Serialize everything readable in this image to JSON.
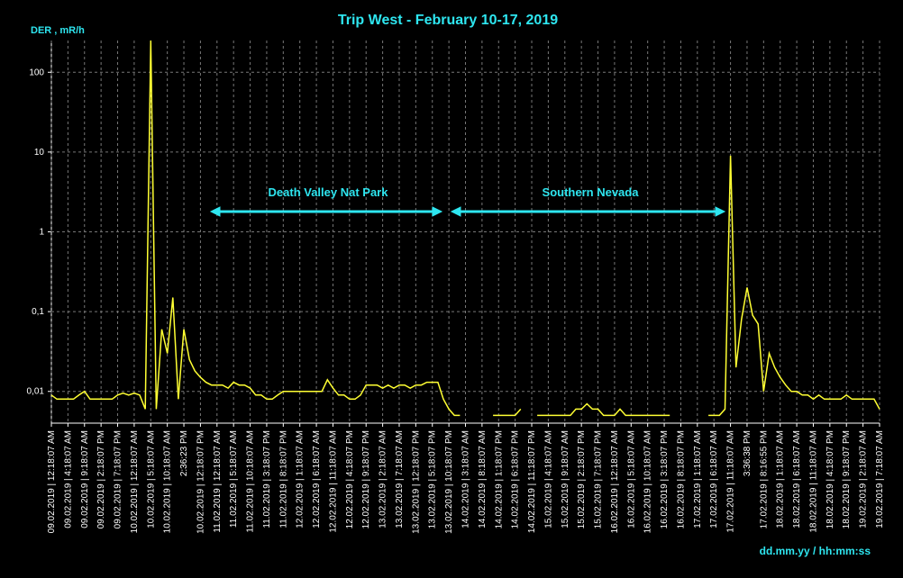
{
  "chart_data": {
    "type": "line",
    "title": "Trip West - February 10-17, 2019",
    "ylabel": "DER , mR/h",
    "xlabel": "dd.mm.yy / hh:mm:ss",
    "log_y": true,
    "grid": true,
    "ylim": [
      0.004,
      250
    ],
    "yticks": [
      {
        "value": 0.01,
        "label": "0,01"
      },
      {
        "value": 0.1,
        "label": "0,1"
      },
      1,
      10,
      100
    ],
    "annotations": [
      "Death Valley Nat Park",
      "Southern Nevada"
    ],
    "categories": [
      "09.02.2019 | 12:18:07 AM",
      null,
      null,
      "09.02.2019 | 4:18:07 AM",
      null,
      null,
      "09.02.2019 | 9:18:07 AM",
      null,
      null,
      "09.02.2019 | 2:18:07 PM",
      null,
      null,
      "09.02.2019 | 7:18:07 PM",
      null,
      null,
      "10.02.2019 | 12:18:07 AM",
      null,
      null,
      "10.02.2019 | 5:18:07 AM",
      null,
      null,
      "10.02.2019 | 10:18:07 AM",
      null,
      null,
      "2:36:23 PM",
      null,
      null,
      "10.02.2019 | 12:18:07 PM",
      null,
      null,
      "11.02.2019 | 12:18:07 AM",
      null,
      null,
      "11.02.2019 | 5:18:07 AM",
      null,
      null,
      "11.02.2019 | 10:18:07 AM",
      null,
      null,
      "11.02.2019 | 3:18:07 PM",
      null,
      null,
      "11.02.2019 | 8:18:07 PM",
      null,
      null,
      "12.02.2019 | 1:18:07 AM",
      null,
      null,
      "12.02.2019 | 6:18:07 AM",
      null,
      null,
      "12.02.2019 | 11:18:07 AM",
      null,
      null,
      "12.02.2019 | 4:18:07 PM",
      null,
      null,
      "12.02.2019 | 9:18:07 PM",
      null,
      null,
      "13.02.2019 | 2:18:07 AM",
      null,
      null,
      "13.02.2019 | 7:18:07 AM",
      null,
      null,
      "13.02.2019 | 12:18:07 PM",
      null,
      null,
      "13.02.2019 | 5:18:07 PM",
      null,
      null,
      "13.02.2019 | 10:18:07 PM",
      null,
      null,
      "14.02.2019 | 3:18:07 AM",
      null,
      null,
      "14.02.2019 | 8:18:07 AM",
      null,
      null,
      "14.02.2019 | 1:18:07 PM",
      null,
      null,
      "14.02.2019 | 6:18:07 PM",
      null,
      null,
      "14.02.2019 | 11:18:07 PM",
      null,
      null,
      "15.02.2019 | 4:18:07 AM",
      null,
      null,
      "15.02.2019 | 9:18:07 AM",
      null,
      null,
      "15.02.2019 | 2:18:07 PM",
      null,
      null,
      "15.02.2019 | 7:18:07 PM",
      null,
      null,
      "16.02.2019 | 12:18:07 AM",
      null,
      null,
      "16.02.2019 | 5:18:07 AM",
      null,
      null,
      "16.02.2019 | 10:18:07 AM",
      null,
      null,
      "16.02.2019 | 3:18:07 PM",
      null,
      null,
      "16.02.2019 | 8:18:07 PM",
      null,
      null,
      "17.02.2019 | 1:18:07 AM",
      null,
      null,
      "17.02.2019 | 6:18:07 AM",
      null,
      null,
      "17.02.2019 | 11:18:07 AM",
      null,
      null,
      "3:36:38 PM",
      null,
      null,
      "17.02.2019 | 8:16:55 PM",
      null,
      null,
      "18.02.2019 | 1:18:07 AM",
      null,
      null,
      "18.02.2019 | 6:18:07 AM",
      null,
      null,
      "18.02.2019 | 11:18:07 AM",
      null,
      null,
      "18.02.2019 | 4:18:07 PM",
      null,
      null,
      "18.02.2019 | 9:18:07 PM",
      null,
      null,
      "19.02.2019 | 2:18:07 AM",
      null,
      null,
      "19.02.2019 | 7:18:07 AM"
    ],
    "series": [
      {
        "color": "#ffff33",
        "values": [
          0.009,
          0.008,
          0.008,
          0.008,
          0.008,
          0.009,
          0.01,
          0.008,
          0.008,
          0.008,
          0.008,
          0.008,
          0.009,
          0.0095,
          0.009,
          0.0095,
          0.009,
          0.006,
          250,
          0.006,
          0.06,
          0.03,
          0.15,
          0.008,
          0.06,
          0.025,
          0.018,
          0.015,
          0.013,
          0.012,
          0.012,
          0.012,
          0.011,
          0.013,
          0.012,
          0.012,
          0.011,
          0.009,
          0.009,
          0.008,
          0.008,
          0.009,
          0.01,
          0.01,
          0.01,
          0.01,
          0.01,
          0.01,
          0.01,
          0.01,
          0.014,
          0.011,
          0.009,
          0.009,
          0.008,
          0.008,
          0.009,
          0.012,
          0.012,
          0.012,
          0.011,
          0.012,
          0.011,
          0.012,
          0.012,
          0.011,
          0.012,
          0.012,
          0.013,
          0.013,
          0.013,
          0.008,
          0.006,
          0.005,
          0.005,
          null,
          null,
          null,
          null,
          null,
          0.005,
          0.005,
          0.005,
          0.005,
          0.005,
          0.006,
          null,
          null,
          0.005,
          0.005,
          0.005,
          0.005,
          0.005,
          0.005,
          0.005,
          0.006,
          0.006,
          0.007,
          0.006,
          0.006,
          0.005,
          0.005,
          0.005,
          0.006,
          0.005,
          0.005,
          0.005,
          0.005,
          0.005,
          0.005,
          0.005,
          0.005,
          0.005,
          null,
          null,
          null,
          null,
          null,
          null,
          0.005,
          0.005,
          0.005,
          0.006,
          9,
          0.02,
          0.08,
          0.2,
          0.09,
          0.07,
          0.01,
          0.03,
          0.02,
          0.015,
          0.012,
          0.01,
          0.01,
          0.009,
          0.009,
          0.008,
          0.009,
          0.008,
          0.008,
          0.008,
          0.008,
          0.009,
          0.008,
          0.008,
          0.008,
          0.008,
          0.008,
          0.006
        ]
      }
    ]
  }
}
